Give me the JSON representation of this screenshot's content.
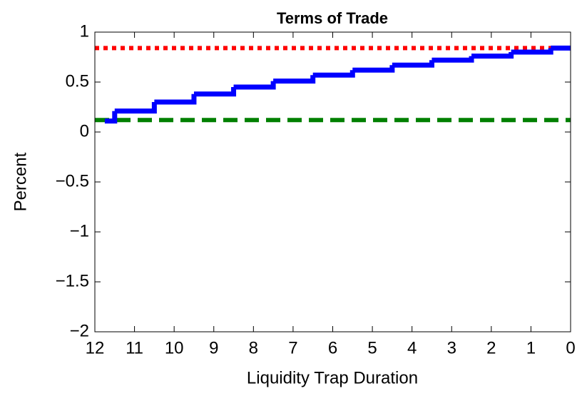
{
  "chart_data": {
    "type": "step",
    "title": "Terms of Trade",
    "xlabel": "Liquidity Trap Duration",
    "ylabel": "Percent",
    "x": [
      11.75,
      11.5,
      10.5,
      9.5,
      8.5,
      7.5,
      6.5,
      5.5,
      4.5,
      3.5,
      2.5,
      1.5,
      0.5,
      0
    ],
    "values": [
      0.11,
      0.21,
      0.3,
      0.38,
      0.45,
      0.51,
      0.57,
      0.62,
      0.67,
      0.72,
      0.76,
      0.8,
      0.84,
      0.84
    ],
    "color": "#0000ff",
    "hlines": [
      {
        "value": 0.84,
        "color": "#ff0000",
        "style": "dotted"
      },
      {
        "value": 0.12,
        "color": "#008000",
        "style": "dashed"
      }
    ],
    "xlim": [
      12,
      0
    ],
    "ylim": [
      -2,
      1
    ],
    "xticks": [
      12,
      11,
      10,
      9,
      8,
      7,
      6,
      5,
      4,
      3,
      2,
      1,
      0
    ],
    "yticks": [
      1,
      0.5,
      0,
      {
        "value": -0.5,
        "label": "−0.5"
      },
      {
        "value": -1,
        "label": "−1"
      },
      {
        "value": -1.5,
        "label": "−1.5"
      },
      {
        "value": -2,
        "label": "−2"
      }
    ],
    "grid": false
  }
}
